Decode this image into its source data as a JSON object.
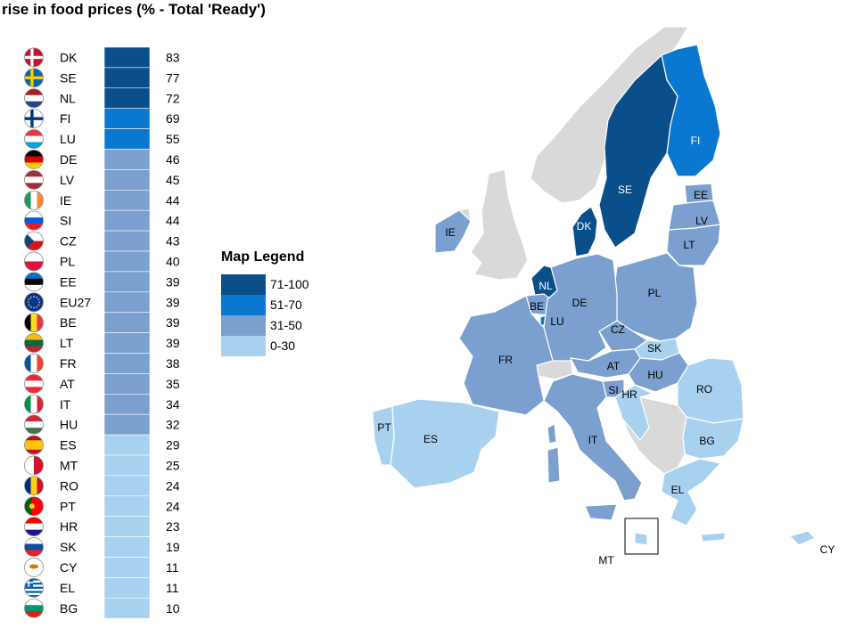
{
  "title": "rise in food prices (%  - Total 'Ready')",
  "legend": {
    "title": "Map Legend",
    "bins": [
      {
        "label": "71-100",
        "min": 71,
        "max": 100,
        "color": "#0a4f8a"
      },
      {
        "label": "51-70",
        "min": 51,
        "max": 70,
        "color": "#0a77d0"
      },
      {
        "label": "31-50",
        "min": 31,
        "max": 50,
        "color": "#7b9fce"
      },
      {
        "label": "0-30",
        "min": 0,
        "max": 30,
        "color": "#a8d1f0"
      }
    ]
  },
  "colors": {
    "no_data": "#d9d9d9",
    "border": "#ffffff"
  },
  "chart_data": {
    "type": "bar",
    "categories": [
      "DK",
      "SE",
      "NL",
      "FI",
      "LU",
      "DE",
      "LV",
      "IE",
      "SI",
      "CZ",
      "PL",
      "EE",
      "EU27",
      "BE",
      "LT",
      "FR",
      "AT",
      "IT",
      "HU",
      "ES",
      "MT",
      "RO",
      "PT",
      "HR",
      "SK",
      "CY",
      "EL",
      "BG"
    ],
    "values": [
      83,
      77,
      72,
      69,
      55,
      46,
      45,
      44,
      44,
      43,
      40,
      39,
      39,
      39,
      39,
      38,
      35,
      34,
      32,
      29,
      25,
      24,
      24,
      23,
      19,
      11,
      11,
      10
    ]
  },
  "map_labels": [
    "FI",
    "SE",
    "EE",
    "LV",
    "LT",
    "DK",
    "IE",
    "NL",
    "PL",
    "BE",
    "DE",
    "LU",
    "CZ",
    "SK",
    "FR",
    "AT",
    "HU",
    "RO",
    "SI",
    "HR",
    "BG",
    "PT",
    "ES",
    "IT",
    "EL",
    "MT",
    "CY"
  ]
}
